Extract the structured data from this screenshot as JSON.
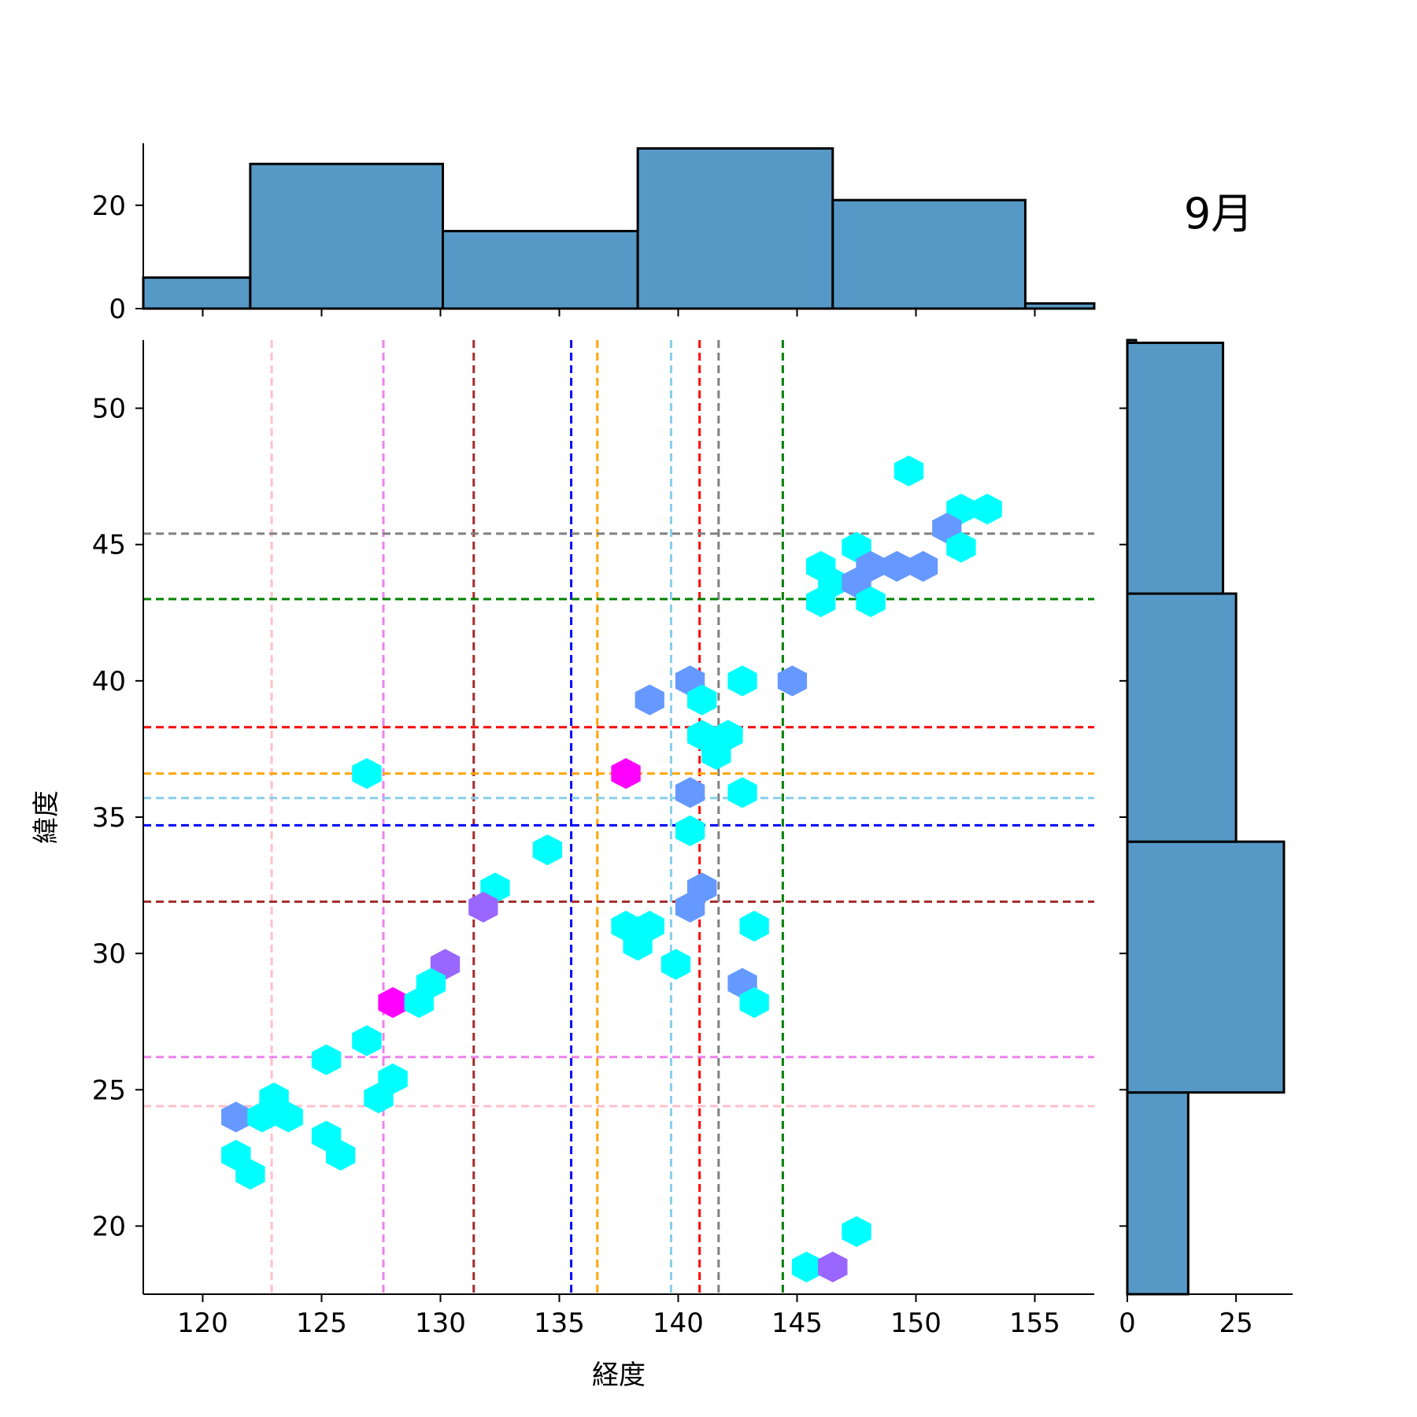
{
  "chart_data": {
    "type": "scatter",
    "title": "9月",
    "xlabel": "経度",
    "ylabel": "緯度",
    "xlim": [
      117.5,
      157.5
    ],
    "ylim": [
      17.5,
      52.5
    ],
    "xticks": [
      120,
      125,
      130,
      135,
      140,
      145,
      150,
      155
    ],
    "yticks": [
      20,
      25,
      30,
      35,
      40,
      45,
      50
    ],
    "hexbins": [
      {
        "x": 149.7,
        "y": 47.7,
        "color": "#00ffff"
      },
      {
        "x": 151.9,
        "y": 46.3,
        "color": "#00ffff"
      },
      {
        "x": 153.0,
        "y": 46.3,
        "color": "#00ffff"
      },
      {
        "x": 151.3,
        "y": 45.6,
        "color": "#6699ff"
      },
      {
        "x": 147.5,
        "y": 44.9,
        "color": "#00ffff"
      },
      {
        "x": 151.9,
        "y": 44.9,
        "color": "#00ffff"
      },
      {
        "x": 146.0,
        "y": 44.2,
        "color": "#00ffff"
      },
      {
        "x": 148.1,
        "y": 44.2,
        "color": "#6699ff"
      },
      {
        "x": 149.2,
        "y": 44.2,
        "color": "#6699ff"
      },
      {
        "x": 150.3,
        "y": 44.2,
        "color": "#6699ff"
      },
      {
        "x": 146.5,
        "y": 43.6,
        "color": "#00ffff"
      },
      {
        "x": 147.5,
        "y": 43.6,
        "color": "#6699ff"
      },
      {
        "x": 146.0,
        "y": 42.9,
        "color": "#00ffff"
      },
      {
        "x": 148.1,
        "y": 42.9,
        "color": "#00ffff"
      },
      {
        "x": 140.5,
        "y": 40.0,
        "color": "#6699ff"
      },
      {
        "x": 142.7,
        "y": 40.0,
        "color": "#00ffff"
      },
      {
        "x": 144.8,
        "y": 40.0,
        "color": "#6699ff"
      },
      {
        "x": 138.8,
        "y": 39.3,
        "color": "#6699ff"
      },
      {
        "x": 141.0,
        "y": 39.3,
        "color": "#00ffff"
      },
      {
        "x": 141.0,
        "y": 38.0,
        "color": "#00ffff"
      },
      {
        "x": 142.1,
        "y": 38.0,
        "color": "#00ffff"
      },
      {
        "x": 141.6,
        "y": 37.3,
        "color": "#00ffff"
      },
      {
        "x": 126.9,
        "y": 36.6,
        "color": "#00ffff"
      },
      {
        "x": 137.8,
        "y": 36.6,
        "color": "#ff00ff"
      },
      {
        "x": 140.5,
        "y": 35.9,
        "color": "#6699ff"
      },
      {
        "x": 142.7,
        "y": 35.9,
        "color": "#00ffff"
      },
      {
        "x": 140.5,
        "y": 34.5,
        "color": "#00ffff"
      },
      {
        "x": 134.5,
        "y": 33.8,
        "color": "#00ffff"
      },
      {
        "x": 132.3,
        "y": 32.4,
        "color": "#00ffff"
      },
      {
        "x": 141.0,
        "y": 32.4,
        "color": "#6699ff"
      },
      {
        "x": 131.8,
        "y": 31.7,
        "color": "#9966ff"
      },
      {
        "x": 140.5,
        "y": 31.7,
        "color": "#6699ff"
      },
      {
        "x": 137.8,
        "y": 31.0,
        "color": "#00ffff"
      },
      {
        "x": 138.8,
        "y": 31.0,
        "color": "#00ffff"
      },
      {
        "x": 143.2,
        "y": 31.0,
        "color": "#00ffff"
      },
      {
        "x": 138.3,
        "y": 30.3,
        "color": "#00ffff"
      },
      {
        "x": 130.2,
        "y": 29.6,
        "color": "#9966ff"
      },
      {
        "x": 139.9,
        "y": 29.6,
        "color": "#00ffff"
      },
      {
        "x": 129.6,
        "y": 28.9,
        "color": "#00ffff"
      },
      {
        "x": 142.7,
        "y": 28.9,
        "color": "#6699ff"
      },
      {
        "x": 128.0,
        "y": 28.2,
        "color": "#ff00ff"
      },
      {
        "x": 129.1,
        "y": 28.2,
        "color": "#00ffff"
      },
      {
        "x": 143.2,
        "y": 28.2,
        "color": "#00ffff"
      },
      {
        "x": 126.9,
        "y": 26.8,
        "color": "#00ffff"
      },
      {
        "x": 125.2,
        "y": 26.1,
        "color": "#00ffff"
      },
      {
        "x": 128.0,
        "y": 25.4,
        "color": "#00ffff"
      },
      {
        "x": 123.0,
        "y": 24.7,
        "color": "#00ffff"
      },
      {
        "x": 127.4,
        "y": 24.7,
        "color": "#00ffff"
      },
      {
        "x": 121.4,
        "y": 24.0,
        "color": "#6699ff"
      },
      {
        "x": 122.5,
        "y": 24.0,
        "color": "#00ffff"
      },
      {
        "x": 123.6,
        "y": 24.0,
        "color": "#00ffff"
      },
      {
        "x": 125.2,
        "y": 23.3,
        "color": "#00ffff"
      },
      {
        "x": 121.4,
        "y": 22.6,
        "color": "#00ffff"
      },
      {
        "x": 125.8,
        "y": 22.6,
        "color": "#00ffff"
      },
      {
        "x": 122.0,
        "y": 21.9,
        "color": "#00ffff"
      },
      {
        "x": 147.5,
        "y": 19.8,
        "color": "#00ffff"
      },
      {
        "x": 145.4,
        "y": 18.5,
        "color": "#00ffff"
      },
      {
        "x": 146.5,
        "y": 18.5,
        "color": "#9966ff"
      }
    ],
    "vlines": [
      {
        "x": 122.9,
        "color": "#ffc0cb"
      },
      {
        "x": 127.6,
        "color": "#ee82ee"
      },
      {
        "x": 131.4,
        "color": "#a52a2a"
      },
      {
        "x": 135.5,
        "color": "#0000ff"
      },
      {
        "x": 136.6,
        "color": "#ffa500"
      },
      {
        "x": 139.7,
        "color": "#87ceeb"
      },
      {
        "x": 140.9,
        "color": "#ff0000"
      },
      {
        "x": 141.7,
        "color": "#808080"
      },
      {
        "x": 144.4,
        "color": "#008000"
      }
    ],
    "hlines": [
      {
        "y": 45.4,
        "color": "#808080"
      },
      {
        "y": 43.0,
        "color": "#008000"
      },
      {
        "y": 38.3,
        "color": "#ff0000"
      },
      {
        "y": 36.6,
        "color": "#ffa500"
      },
      {
        "y": 35.7,
        "color": "#87ceeb"
      },
      {
        "y": 34.7,
        "color": "#0000ff"
      },
      {
        "y": 31.9,
        "color": "#a52a2a"
      },
      {
        "y": 26.2,
        "color": "#ee82ee"
      },
      {
        "y": 24.4,
        "color": "#ffc0cb"
      }
    ],
    "top_histogram": {
      "yticks": [
        0,
        20
      ],
      "ylim": [
        0,
        32
      ],
      "bins": [
        {
          "x0": 117.5,
          "x1": 122.0,
          "count": 6
        },
        {
          "x0": 122.0,
          "x1": 130.1,
          "count": 28
        },
        {
          "x0": 130.1,
          "x1": 138.3,
          "count": 15
        },
        {
          "x0": 138.3,
          "x1": 146.5,
          "count": 31
        },
        {
          "x0": 146.5,
          "x1": 154.6,
          "count": 21
        },
        {
          "x0": 154.6,
          "x1": 157.5,
          "count": 1
        }
      ]
    },
    "right_histogram": {
      "xticks": [
        0,
        25
      ],
      "xlim": [
        0,
        38
      ],
      "bins": [
        {
          "y0": 17.5,
          "y1": 24.9,
          "count": 14
        },
        {
          "y0": 24.9,
          "y1": 34.1,
          "count": 36
        },
        {
          "y0": 34.1,
          "y1": 43.2,
          "count": 25
        },
        {
          "y0": 43.2,
          "y1": 52.4,
          "count": 22
        },
        {
          "y0": 52.4,
          "y1": 52.5,
          "count": 2
        }
      ]
    },
    "bar_color": "#5799c6",
    "grid": false
  }
}
